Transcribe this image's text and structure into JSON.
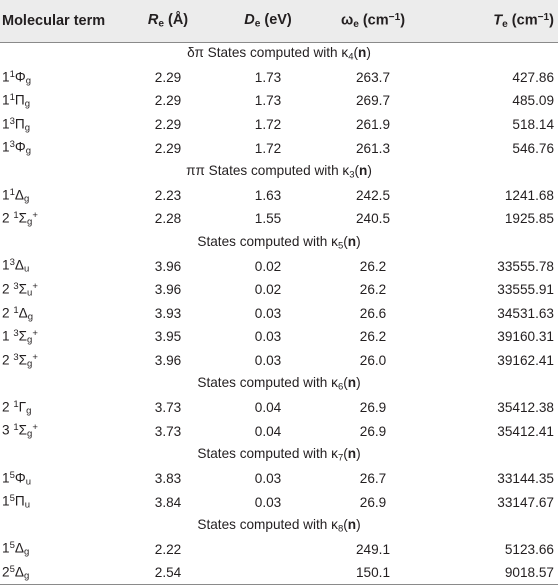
{
  "header": {
    "col0": "Molecular term",
    "col1": {
      "sym": "R",
      "sub": "e",
      "unit": " (Å)"
    },
    "col2": {
      "sym": "D",
      "sub": "e",
      "unit": " (eV)"
    },
    "col3": {
      "sym": "ω",
      "sub": "e",
      "unit": " (cm",
      "sup": "−1",
      "close": ")"
    },
    "col4": {
      "sym": "T",
      "sub": "e",
      "unit": " (cm",
      "sup": "−1",
      "close": ")"
    }
  },
  "groups": [
    {
      "title_prefix": "δπ  States computed with κ",
      "kappa_sub": "4",
      "open": "(",
      "n": "n",
      "close": ")",
      "rows": [
        {
          "num": "1",
          "mult": "1",
          "sym": "Φ",
          "par": "g",
          "post": "",
          "re": "2.29",
          "de": "1.73",
          "we": "263.7",
          "te": "427.86"
        },
        {
          "num": "1",
          "mult": "1",
          "sym": "Π",
          "par": "g",
          "post": "",
          "re": "2.29",
          "de": "1.73",
          "we": "269.7",
          "te": "485.09"
        },
        {
          "num": "1",
          "mult": "3",
          "sym": "Π",
          "par": "g",
          "post": "",
          "re": "2.29",
          "de": "1.72",
          "we": "261.9",
          "te": "518.14"
        },
        {
          "num": "1",
          "mult": "3",
          "sym": "Φ",
          "par": "g",
          "post": "",
          "re": "2.29",
          "de": "1.72",
          "we": "261.3",
          "te": "546.76"
        }
      ]
    },
    {
      "title_prefix": "ππ  States computed with κ",
      "kappa_sub": "3",
      "open": "(",
      "n": "n",
      "close": ")",
      "rows": [
        {
          "num": "1",
          "mult": "1",
          "sym": "Δ",
          "par": "g",
          "post": "",
          "re": "2.23",
          "de": "1.63",
          "we": "242.5",
          "te": "1241.68"
        },
        {
          "num": "2 ",
          "mult": "1",
          "sym": "Σ",
          "par": "g",
          "post": "+",
          "re": "2.28",
          "de": "1.55",
          "we": "240.5",
          "te": "1925.85"
        }
      ]
    },
    {
      "title_prefix": "States computed with κ",
      "kappa_sub": "5",
      "open": "(",
      "n": "n",
      "close": ")",
      "rows": [
        {
          "num": "1",
          "mult": "3",
          "sym": "Δ",
          "par": "u",
          "post": "",
          "re": "3.96",
          "de": "0.02",
          "we": "26.2",
          "te": "33555.78"
        },
        {
          "num": "2 ",
          "mult": "3",
          "sym": "Σ",
          "par": "u",
          "post": "+",
          "re": "3.96",
          "de": "0.02",
          "we": "26.2",
          "te": "33555.91"
        },
        {
          "num": "2 ",
          "mult": "1",
          "sym": "Δ",
          "par": "g",
          "post": "",
          "re": "3.93",
          "de": "0.03",
          "we": "26.6",
          "te": "34531.63"
        },
        {
          "num": "1 ",
          "mult": "3",
          "sym": "Σ",
          "par": "g",
          "post": "+",
          "re": "3.95",
          "de": "0.03",
          "we": "26.2",
          "te": "39160.31"
        },
        {
          "num": "2 ",
          "mult": "3",
          "sym": "Σ",
          "par": "g",
          "post": "+",
          "re": "3.96",
          "de": "0.03",
          "we": "26.0",
          "te": "39162.41"
        }
      ]
    },
    {
      "title_prefix": "States computed with κ",
      "kappa_sub": "6",
      "open": "(",
      "n": "n",
      "close": ")",
      "rows": [
        {
          "num": "2 ",
          "mult": "1",
          "sym": "Γ",
          "par": "g",
          "post": "",
          "re": "3.73",
          "de": "0.04",
          "we": "26.9",
          "te": "35412.38"
        },
        {
          "num": "3 ",
          "mult": "1",
          "sym": "Σ",
          "par": "g",
          "post": "+",
          "re": "3.73",
          "de": "0.04",
          "we": "26.9",
          "te": "35412.41"
        }
      ]
    },
    {
      "title_prefix": "States computed with κ",
      "kappa_sub": "7",
      "open": "(",
      "n": "n",
      "close": ")",
      "rows": [
        {
          "num": "1",
          "mult": "5",
          "sym": "Φ",
          "par": "u",
          "post": "",
          "re": "3.83",
          "de": "0.03",
          "we": "26.7",
          "te": "33144.35"
        },
        {
          "num": "1",
          "mult": "5",
          "sym": "Π",
          "par": "u",
          "post": "",
          "re": "3.84",
          "de": "0.03",
          "we": "26.9",
          "te": "33147.67"
        }
      ]
    },
    {
      "title_prefix": "States computed with κ",
      "kappa_sub": "8",
      "open": "(",
      "n": "n",
      "close": ")",
      "rows": [
        {
          "num": "1",
          "mult": "5",
          "sym": "Δ",
          "par": "g",
          "post": "",
          "re": "2.22",
          "de": "",
          "we": "249.1",
          "te": "5123.66"
        },
        {
          "num": "2",
          "mult": "5",
          "sym": "Δ",
          "par": "g",
          "post": "",
          "re": "2.54",
          "de": "",
          "we": "150.1",
          "te": "9018.57"
        }
      ]
    }
  ]
}
